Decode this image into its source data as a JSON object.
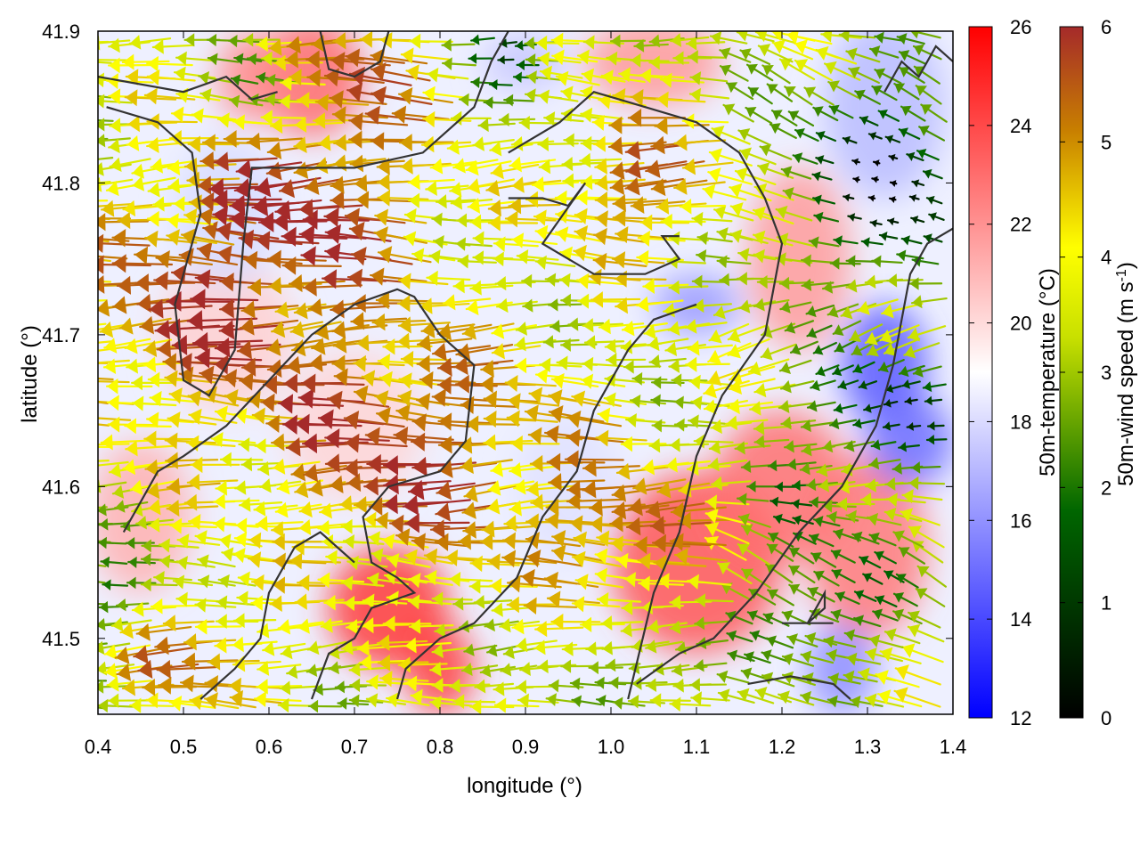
{
  "chart_data": {
    "type": "heatmap",
    "xlabel": "longitude (°)",
    "ylabel": "latitude (°)",
    "xlim": [
      0.4,
      1.4
    ],
    "ylim": [
      41.45,
      41.9
    ],
    "x_ticks": [
      "0.4",
      "0.5",
      "0.6",
      "0.7",
      "0.8",
      "0.9",
      "1.0",
      "1.1",
      "1.2",
      "1.3",
      "1.4"
    ],
    "y_ticks": [
      "41.5",
      "41.6",
      "41.7",
      "41.8",
      "41.9"
    ],
    "colorbars": [
      {
        "label": "50m-temperature (°C)",
        "range": [
          12,
          26
        ],
        "ticks": [
          "12",
          "14",
          "16",
          "18",
          "20",
          "22",
          "24",
          "26"
        ],
        "colors": [
          "#0000ff",
          "#ffffff",
          "#ff0000"
        ]
      },
      {
        "label_main": "50m-wind speed (m s",
        "label_sup": "-1",
        "label_end": ")",
        "range": [
          0,
          6
        ],
        "ticks": [
          "0",
          "1",
          "2",
          "3",
          "4",
          "5",
          "6"
        ],
        "colors": [
          "#000000",
          "#006600",
          "#ffff00",
          "#c87f00",
          "#a52a2a"
        ]
      }
    ],
    "grid": false,
    "legend": "none"
  }
}
